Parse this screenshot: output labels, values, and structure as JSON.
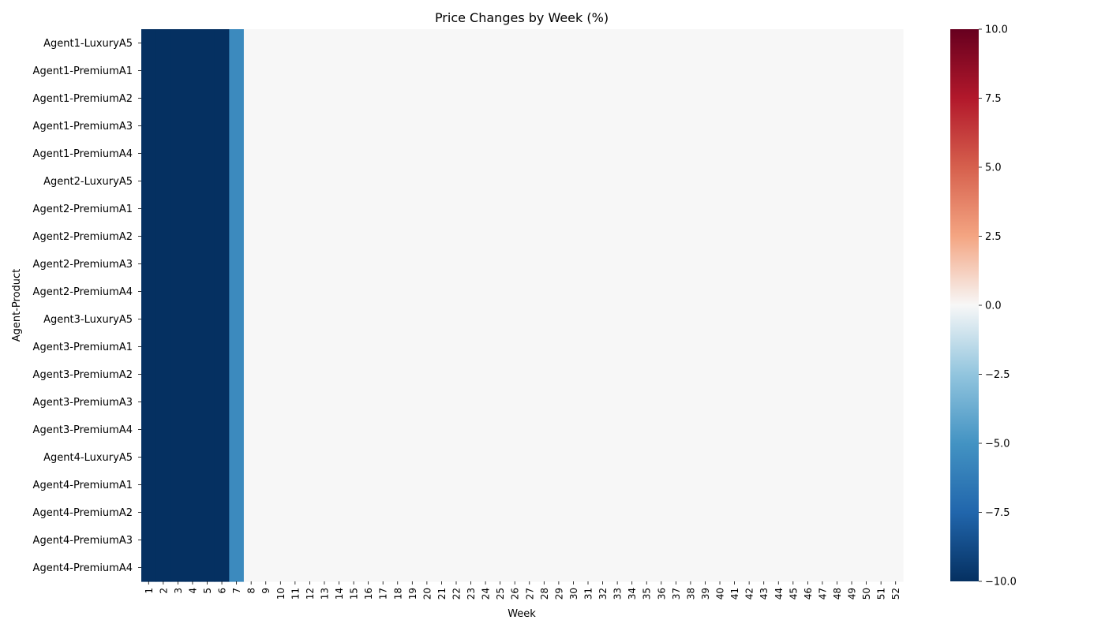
{
  "chart_data": {
    "type": "heatmap",
    "title": "Price Changes by Week (%)",
    "xlabel": "Week",
    "ylabel": "Agent-Product",
    "x_categories": [
      "1",
      "2",
      "3",
      "4",
      "5",
      "6",
      "7",
      "8",
      "9",
      "10",
      "11",
      "12",
      "13",
      "14",
      "15",
      "16",
      "17",
      "18",
      "19",
      "20",
      "21",
      "22",
      "23",
      "24",
      "25",
      "26",
      "27",
      "28",
      "29",
      "30",
      "31",
      "32",
      "33",
      "34",
      "35",
      "36",
      "37",
      "38",
      "39",
      "40",
      "41",
      "42",
      "43",
      "44",
      "45",
      "46",
      "47",
      "48",
      "49",
      "50",
      "51",
      "52"
    ],
    "y_categories": [
      "Agent1-LuxuryA5",
      "Agent1-PremiumA1",
      "Agent1-PremiumA2",
      "Agent1-PremiumA3",
      "Agent1-PremiumA4",
      "Agent2-LuxuryA5",
      "Agent2-PremiumA1",
      "Agent2-PremiumA2",
      "Agent2-PremiumA3",
      "Agent2-PremiumA4",
      "Agent3-LuxuryA5",
      "Agent3-PremiumA1",
      "Agent3-PremiumA2",
      "Agent3-PremiumA3",
      "Agent3-PremiumA4",
      "Agent4-LuxuryA5",
      "Agent4-PremiumA1",
      "Agent4-PremiumA2",
      "Agent4-PremiumA3",
      "Agent4-PremiumA4"
    ],
    "row_values": [
      -10,
      -10,
      -10,
      -10,
      -10,
      -10,
      -5.5,
      0,
      0,
      0,
      0,
      0,
      0,
      0,
      0,
      0,
      0,
      0,
      0,
      0,
      0,
      0,
      0,
      0,
      0,
      0,
      0,
      0,
      0,
      0,
      0,
      0,
      0,
      0,
      0,
      0,
      0,
      0,
      0,
      0,
      0,
      0,
      0,
      0,
      0,
      0,
      0,
      0,
      0,
      0,
      0,
      0
    ],
    "note_all_rows_identical": true,
    "colorbar": {
      "colormap": "RdBu_r",
      "vmin": -10,
      "vmax": 10,
      "ticks": [
        10.0,
        7.5,
        5.0,
        2.5,
        0.0,
        -2.5,
        -5.0,
        -7.5,
        -10.0
      ],
      "tick_labels": [
        "10.0",
        "7.5",
        "5.0",
        "2.5",
        "0.0",
        "−2.5",
        "−5.0",
        "−7.5",
        "−10.0"
      ]
    }
  }
}
